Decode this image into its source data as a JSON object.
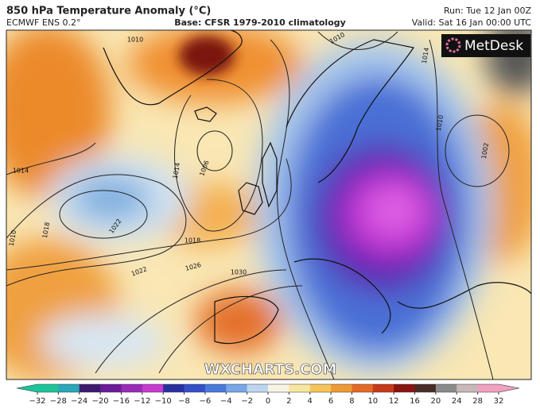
{
  "header": {
    "title": "850 hPa Temperature Anomaly (°C)",
    "model": "ECMWF ENS 0.2°",
    "base": "Base: CFSR 1979-2010 climatology",
    "run": "Run: Tue 12 Jan 00Z",
    "valid": "Valid: Sat 16 Jan 00:00 UTC"
  },
  "logo": "MetDesk",
  "watermark": "WXCHARTS.COM",
  "contour_labels": [
    "1010",
    "1014",
    "1010",
    "1018",
    "1022",
    "1022",
    "1018",
    "1026",
    "1030",
    "1006",
    "1014",
    "1010",
    "1002",
    "1010",
    "1014"
  ],
  "colorbar": {
    "ticks": [
      {
        "value": -32,
        "label": "−32"
      },
      {
        "value": -28,
        "label": "−28"
      },
      {
        "value": -24,
        "label": "−24"
      },
      {
        "value": -20,
        "label": "−20"
      },
      {
        "value": -16,
        "label": "−16"
      },
      {
        "value": -12,
        "label": "−12"
      },
      {
        "value": -10,
        "label": "−10"
      },
      {
        "value": -8,
        "label": "−8"
      },
      {
        "value": -6,
        "label": "−6"
      },
      {
        "value": -4,
        "label": "−4"
      },
      {
        "value": -2,
        "label": "−2"
      },
      0,
      2,
      4,
      6,
      8,
      10,
      12,
      16,
      20,
      24,
      28,
      32
    ],
    "colors": [
      "#1cc49a",
      "#2aa7b8",
      "#3d1a6e",
      "#6a1a9a",
      "#9a2ab8",
      "#c83ad0",
      "#2a2fa0",
      "#3450c8",
      "#4a78dc",
      "#78a6e6",
      "#bcd6f0",
      "#f8f3e4",
      "#f8e6a0",
      "#f6c45a",
      "#f09a36",
      "#e46a24",
      "#c83a1a",
      "#8a1410",
      "#4a2a26",
      "#8a8a8a",
      "#c8b8b8",
      "#f0a0c0"
    ]
  }
}
